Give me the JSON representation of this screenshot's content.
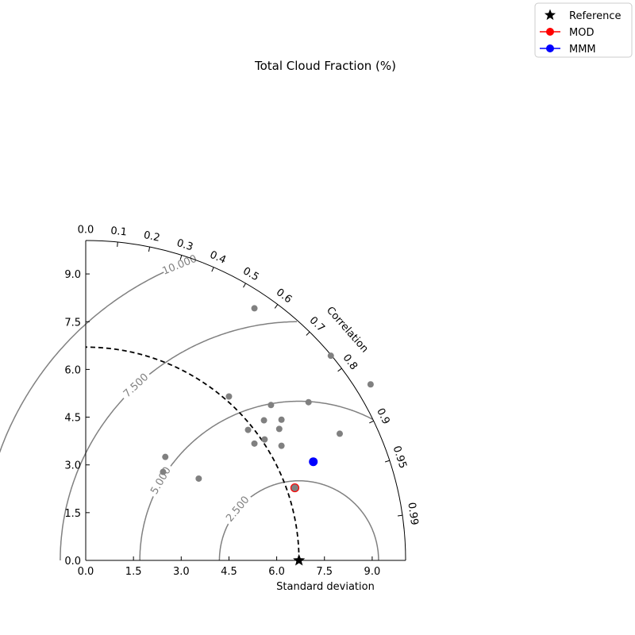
{
  "chart_data": {
    "type": "scatter",
    "subtype": "taylor-diagram",
    "title": "Total Cloud Fraction (%)",
    "xlabel": "Standard deviation",
    "correlation_label": "Correlation",
    "std_range": [
      0,
      10.05
    ],
    "std_ticks": [
      {
        "value": 0.0,
        "label": "0.0"
      },
      {
        "value": 1.5,
        "label": "1.5"
      },
      {
        "value": 3.0,
        "label": "3.0"
      },
      {
        "value": 4.5,
        "label": "4.5"
      },
      {
        "value": 6.0,
        "label": "6.0"
      },
      {
        "value": 7.5,
        "label": "7.5"
      },
      {
        "value": 9.0,
        "label": "9.0"
      }
    ],
    "correlation_ticks": [
      {
        "value": 0.0,
        "label": "0.0"
      },
      {
        "value": 0.1,
        "label": "0.1"
      },
      {
        "value": 0.2,
        "label": "0.2"
      },
      {
        "value": 0.3,
        "label": "0.3"
      },
      {
        "value": 0.4,
        "label": "0.4"
      },
      {
        "value": 0.5,
        "label": "0.5"
      },
      {
        "value": 0.6,
        "label": "0.6"
      },
      {
        "value": 0.7,
        "label": "0.7"
      },
      {
        "value": 0.8,
        "label": "0.8"
      },
      {
        "value": 0.9,
        "label": "0.9"
      },
      {
        "value": 0.95,
        "label": "0.95"
      },
      {
        "value": 0.99,
        "label": "0.99"
      }
    ],
    "reference_std": 6.7,
    "rms_contours": [
      {
        "value": 2.5,
        "label": "2.500",
        "label_angle_deg": 140
      },
      {
        "value": 5.0,
        "label": "5.000",
        "label_angle_deg": 150
      },
      {
        "value": 7.5,
        "label": "7.500",
        "label_angle_deg": 133
      },
      {
        "value": 10.0,
        "label": "10.000",
        "label_angle_deg": 112
      }
    ],
    "models": [
      {
        "x": 5.3,
        "y": 7.92
      },
      {
        "x": 7.7,
        "y": 6.43
      },
      {
        "x": 8.95,
        "y": 5.53
      },
      {
        "x": 4.5,
        "y": 5.15
      },
      {
        "x": 5.82,
        "y": 4.88
      },
      {
        "x": 7.0,
        "y": 4.97
      },
      {
        "x": 5.6,
        "y": 4.4
      },
      {
        "x": 6.15,
        "y": 4.42
      },
      {
        "x": 5.1,
        "y": 4.1
      },
      {
        "x": 6.08,
        "y": 4.13
      },
      {
        "x": 7.98,
        "y": 3.98
      },
      {
        "x": 5.62,
        "y": 3.8
      },
      {
        "x": 5.3,
        "y": 3.67
      },
      {
        "x": 6.15,
        "y": 3.6
      },
      {
        "x": 2.5,
        "y": 3.25
      },
      {
        "x": 2.43,
        "y": 2.78
      },
      {
        "x": 3.55,
        "y": 2.57
      },
      {
        "x": 6.57,
        "y": 2.28
      }
    ],
    "mod": {
      "x": 6.57,
      "y": 2.28
    },
    "mmm": {
      "x": 7.15,
      "y": 3.1
    },
    "legend": {
      "position": "top-right",
      "entries": [
        {
          "label": "Reference",
          "marker": "star",
          "color": "#000000"
        },
        {
          "label": "MOD",
          "marker": "circle",
          "color": "#ff0000"
        },
        {
          "label": "MMM",
          "marker": "circle",
          "color": "#0000ff"
        }
      ]
    },
    "colors": {
      "model_points": "#808080",
      "contours": "#808080",
      "reference_arc": "#000000"
    }
  }
}
